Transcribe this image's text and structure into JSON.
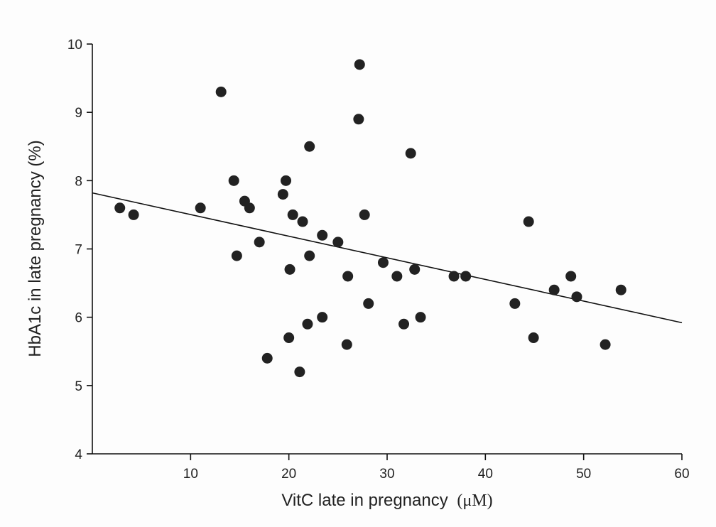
{
  "chart_data": {
    "type": "scatter",
    "xlabel": "VitC late in pregnancy",
    "xlabel_unit_open": "(",
    "xlabel_unit": "μM",
    "xlabel_unit_close": ")",
    "ylabel": "HbA1c in late pregnancy (%)",
    "xlim": [
      0,
      60
    ],
    "ylim": [
      4,
      10
    ],
    "xticks": [
      10,
      20,
      30,
      40,
      50,
      60
    ],
    "yticks": [
      4,
      5,
      6,
      7,
      8,
      9,
      10
    ],
    "grid": false,
    "legend": "none",
    "marker_color": "#222222",
    "line_color": "#111111",
    "trendline": {
      "x": [
        0,
        60
      ],
      "y": [
        7.82,
        5.92
      ]
    },
    "points": [
      {
        "x": 2.8,
        "y": 7.6
      },
      {
        "x": 4.2,
        "y": 7.5
      },
      {
        "x": 11.0,
        "y": 7.6
      },
      {
        "x": 13.1,
        "y": 9.3
      },
      {
        "x": 14.4,
        "y": 8.0
      },
      {
        "x": 14.7,
        "y": 6.9
      },
      {
        "x": 15.5,
        "y": 7.7
      },
      {
        "x": 16.0,
        "y": 7.6
      },
      {
        "x": 17.0,
        "y": 7.1
      },
      {
        "x": 17.8,
        "y": 5.4
      },
      {
        "x": 19.4,
        "y": 7.8
      },
      {
        "x": 19.7,
        "y": 8.0
      },
      {
        "x": 20.0,
        "y": 5.7
      },
      {
        "x": 20.1,
        "y": 6.7
      },
      {
        "x": 20.4,
        "y": 7.5
      },
      {
        "x": 21.1,
        "y": 5.2
      },
      {
        "x": 21.4,
        "y": 7.4
      },
      {
        "x": 21.9,
        "y": 5.9
      },
      {
        "x": 22.1,
        "y": 6.9
      },
      {
        "x": 22.1,
        "y": 8.5
      },
      {
        "x": 23.4,
        "y": 6.0
      },
      {
        "x": 23.4,
        "y": 7.2
      },
      {
        "x": 25.0,
        "y": 7.1
      },
      {
        "x": 25.9,
        "y": 5.6
      },
      {
        "x": 26.0,
        "y": 6.6
      },
      {
        "x": 27.1,
        "y": 8.9
      },
      {
        "x": 27.2,
        "y": 9.7
      },
      {
        "x": 27.7,
        "y": 7.5
      },
      {
        "x": 28.1,
        "y": 6.2
      },
      {
        "x": 29.6,
        "y": 6.8
      },
      {
        "x": 31.0,
        "y": 6.6
      },
      {
        "x": 31.7,
        "y": 5.9
      },
      {
        "x": 32.4,
        "y": 8.4
      },
      {
        "x": 32.8,
        "y": 6.7
      },
      {
        "x": 33.4,
        "y": 6.0
      },
      {
        "x": 36.8,
        "y": 6.6
      },
      {
        "x": 38.0,
        "y": 6.6
      },
      {
        "x": 43.0,
        "y": 6.2
      },
      {
        "x": 44.4,
        "y": 7.4
      },
      {
        "x": 44.9,
        "y": 5.7
      },
      {
        "x": 47.0,
        "y": 6.4
      },
      {
        "x": 48.7,
        "y": 6.6
      },
      {
        "x": 49.3,
        "y": 6.3
      },
      {
        "x": 52.2,
        "y": 5.6
      },
      {
        "x": 53.8,
        "y": 6.4
      }
    ]
  }
}
